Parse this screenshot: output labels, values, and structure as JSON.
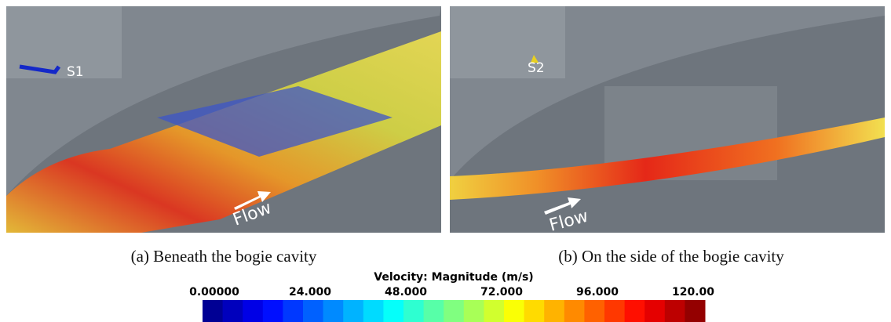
{
  "panels": [
    {
      "inset_label": "S1",
      "arrow_label": "Flow",
      "caption": "(a) Beneath the bogie cavity"
    },
    {
      "inset_label": "S2",
      "arrow_label": "Flow",
      "caption": "(b) On the side of the bogie cavity"
    }
  ],
  "colorbar": {
    "title": "Velocity: Magnitude (m/s)",
    "ticks": [
      "0.00000",
      "24.000",
      "48.000",
      "72.000",
      "96.000",
      "120.00"
    ]
  }
}
